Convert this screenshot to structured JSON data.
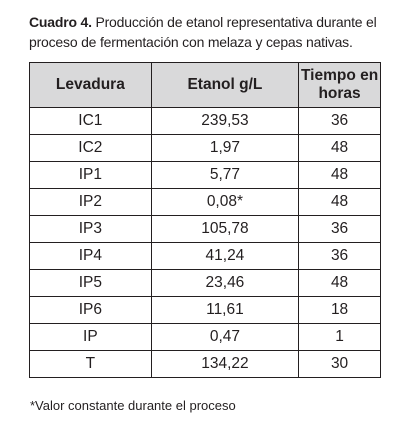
{
  "caption": {
    "label": "Cuadro 4.",
    "text": " Producción de etanol representativa durante el proceso de fermentación con melaza y cepas nativas."
  },
  "table": {
    "headers": [
      "Levadura",
      "Etanol g/L",
      "Tiempo en horas"
    ],
    "rows": [
      [
        "IC1",
        "239,53",
        "36"
      ],
      [
        "IC2",
        "1,97",
        "48"
      ],
      [
        "IP1",
        "5,77",
        "48"
      ],
      [
        "IP2",
        "0,08*",
        "48"
      ],
      [
        "IP3",
        "105,78",
        "36"
      ],
      [
        "IP4",
        "41,24",
        "36"
      ],
      [
        "IP5",
        "23,46",
        "48"
      ],
      [
        "IP6",
        "11,61",
        "18"
      ],
      [
        "IP",
        "0,47",
        "1"
      ],
      [
        "T",
        "134,22",
        "30"
      ]
    ]
  },
  "footnote": "*Valor constante durante el proceso",
  "colors": {
    "header_bg": "#d9d9da",
    "text": "#231f20",
    "border": "#231f20"
  }
}
